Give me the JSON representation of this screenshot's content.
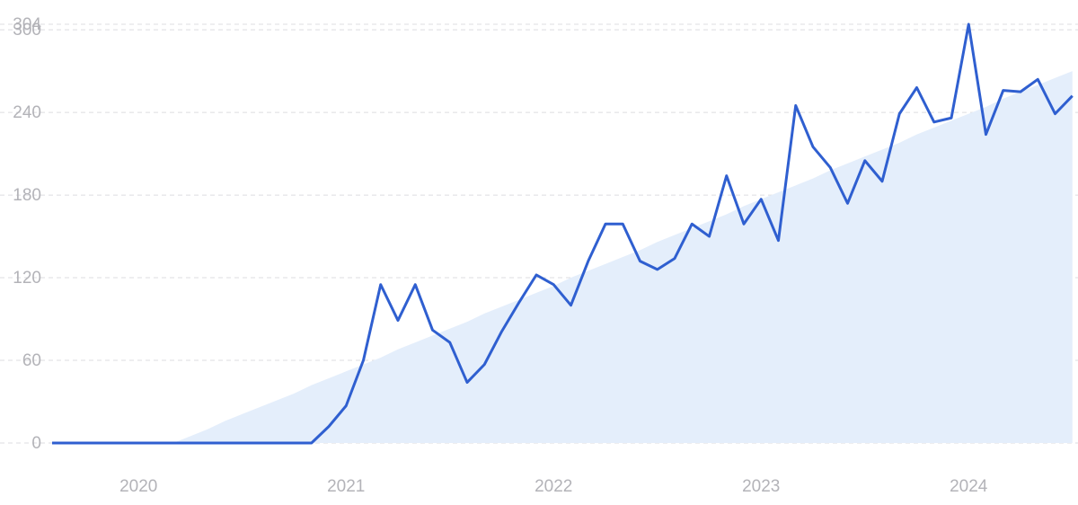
{
  "chart_data": {
    "type": "line",
    "categories": [
      null,
      null,
      null,
      null,
      null,
      "2020",
      null,
      null,
      null,
      null,
      null,
      null,
      null,
      null,
      null,
      null,
      null,
      "2021",
      null,
      null,
      null,
      null,
      null,
      null,
      null,
      null,
      null,
      null,
      null,
      "2022",
      null,
      null,
      null,
      null,
      null,
      null,
      null,
      null,
      null,
      null,
      null,
      "2023",
      null,
      null,
      null,
      null,
      null,
      null,
      null,
      null,
      null,
      null,
      null,
      "2024",
      null,
      null,
      null,
      null,
      null,
      null
    ],
    "series": [
      {
        "color": "#2f5fd0",
        "values": [
          0,
          0,
          0,
          0,
          0,
          0,
          0,
          0,
          0,
          0,
          0,
          0,
          0,
          0,
          0,
          0,
          12,
          27,
          60,
          115,
          89,
          115,
          82,
          73,
          44,
          57,
          81,
          102,
          122,
          115,
          100,
          132,
          159,
          159,
          132,
          126,
          134,
          159,
          150,
          194,
          159,
          177,
          147,
          245,
          215,
          200,
          174,
          205,
          190,
          239,
          258,
          233,
          236,
          304,
          224,
          256,
          255,
          264,
          239,
          252
        ]
      },
      {
        "color": "#e4eefb",
        "area": true,
        "values": [
          null,
          null,
          null,
          null,
          null,
          null,
          null,
          0,
          5,
          10,
          16,
          21,
          26,
          31,
          36,
          42,
          47,
          52,
          57,
          62,
          68,
          73,
          78,
          83,
          88,
          94,
          99,
          104,
          109,
          114,
          120,
          125,
          130,
          135,
          140,
          146,
          151,
          156,
          161,
          166,
          172,
          177,
          182,
          187,
          192,
          198,
          203,
          208,
          213,
          218,
          224,
          229,
          234,
          239,
          244,
          250,
          255,
          260,
          265,
          270
        ]
      }
    ],
    "ylim": [
      0,
      304
    ],
    "yticks": [
      0,
      60,
      120,
      180,
      240,
      300,
      304
    ],
    "grid": true
  }
}
